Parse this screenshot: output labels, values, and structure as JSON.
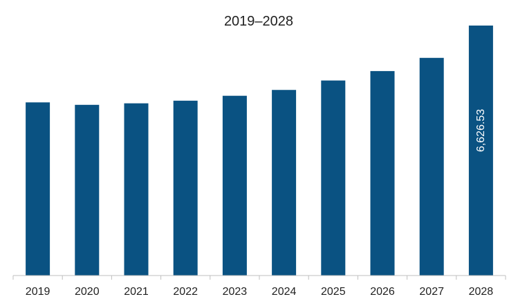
{
  "chart_data": {
    "type": "bar",
    "title": "2019–2028",
    "xlabel": "",
    "ylabel": "",
    "categories": [
      "2019",
      "2020",
      "2021",
      "2022",
      "2023",
      "2024",
      "2025",
      "2026",
      "2027",
      "2028"
    ],
    "values": [
      4590,
      4525,
      4565,
      4635,
      4765,
      4920,
      5170,
      5420,
      5770,
      6626.53
    ],
    "data_labels": [
      {
        "index": 9,
        "text": "6,626.53"
      }
    ],
    "ylim": [
      0,
      6626.53
    ],
    "grid": false,
    "legend": "none",
    "bar_color": "#0a5282",
    "axis_color": "#bfbfbf"
  }
}
